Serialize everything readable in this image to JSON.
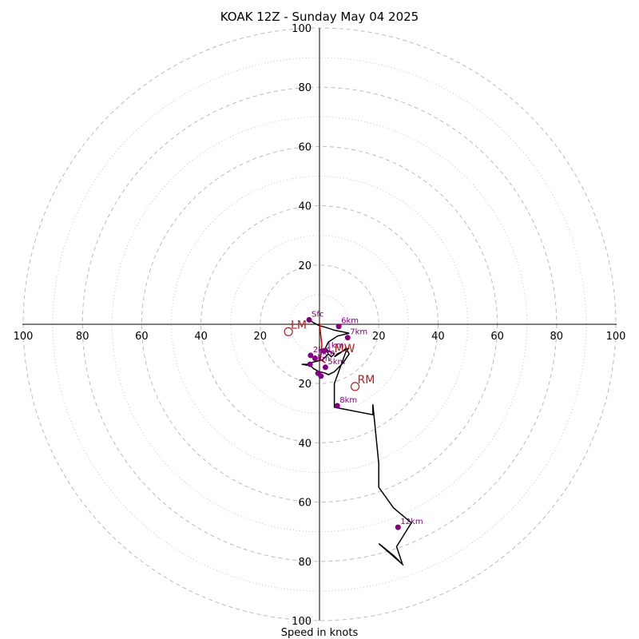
{
  "chart_data": {
    "type": "hodograph",
    "title": "KOAK 12Z - Sunday May 04 2025",
    "xlabel": "Speed in knots",
    "range": [
      -100,
      100
    ],
    "major_rings": [
      20,
      40,
      60,
      80,
      100
    ],
    "minor_rings": [
      10,
      30,
      50,
      70,
      90
    ],
    "ticks": [
      -100,
      -80,
      -60,
      -40,
      -20,
      20,
      40,
      60,
      80,
      100
    ],
    "tick_labels": [
      "100",
      "80",
      "60",
      "40",
      "20",
      "20",
      "40",
      "60",
      "80",
      "100"
    ],
    "hodograph": {
      "u": [
        -3.5,
        -2,
        0,
        2,
        5,
        10,
        6,
        3,
        2,
        3,
        4,
        5,
        3,
        2,
        3,
        1,
        -1,
        -3,
        -4,
        -6,
        -3,
        -2,
        0,
        2,
        3,
        5,
        8,
        10,
        9,
        8,
        6,
        5,
        8,
        10,
        9,
        5,
        5,
        18,
        18,
        19,
        20,
        20,
        25,
        31,
        26,
        28,
        20,
        25,
        27
      ],
      "v": [
        1.5,
        0.5,
        -0.5,
        -1,
        -2,
        -3,
        -4,
        -6,
        -8,
        -10,
        -11,
        -10,
        -9,
        -8,
        -10,
        -12,
        -12.5,
        -13,
        -13.5,
        -13.5,
        -14,
        -15,
        -16,
        -16.5,
        -17,
        -16,
        -13,
        -10,
        -8,
        -9,
        -10,
        -11,
        -9,
        -8,
        -9,
        -20,
        -28,
        -30.5,
        -27,
        -37,
        -47,
        -55,
        -62,
        -67,
        -75,
        -81,
        -74,
        -78,
        -80
      ]
    },
    "height_markers": [
      {
        "label": "Sfc",
        "u": -3.5,
        "v": 1.5
      },
      {
        "label": "6km",
        "u": 6.5,
        "v": -0.7
      },
      {
        "label": "7km",
        "u": 9.5,
        "v": -4.5
      },
      {
        "label": "2km",
        "u": -3,
        "v": -10.5
      },
      {
        "label": "3km",
        "u": -1.5,
        "v": -11.5
      },
      {
        "label": "1km",
        "u": 1.5,
        "v": -9
      },
      {
        "label": "4km",
        "u": -3.2,
        "v": -13.5
      },
      {
        "label": "5km",
        "u": 2,
        "v": -14.5
      },
      {
        "label": "",
        "u": -0.5,
        "v": -16.5
      },
      {
        "label": "",
        "u": 0.5,
        "v": -17.5
      },
      {
        "label": "8km",
        "u": 6,
        "v": -27.5
      },
      {
        "label": "12km",
        "u": 26.5,
        "v": -68.5
      }
    ],
    "storm_motion": {
      "line_color": "#cc0000",
      "line_u": [
        0,
        0.8,
        0.5,
        0.3,
        1.2,
        2
      ],
      "line_v": [
        0,
        -7,
        -10,
        -12,
        -12.5,
        -13
      ],
      "points": [
        {
          "label": "LM",
          "u": -10.5,
          "v": -2.5
        },
        {
          "label": "RM",
          "u": 12,
          "v": -21
        }
      ],
      "extra_labels": [
        {
          "label": "MW",
          "u": 5,
          "v": -9.5
        }
      ]
    },
    "colors": {
      "trace": "#000000",
      "marker": "#800080",
      "storm": "#b22222",
      "grid": "#bbbbbb"
    }
  }
}
